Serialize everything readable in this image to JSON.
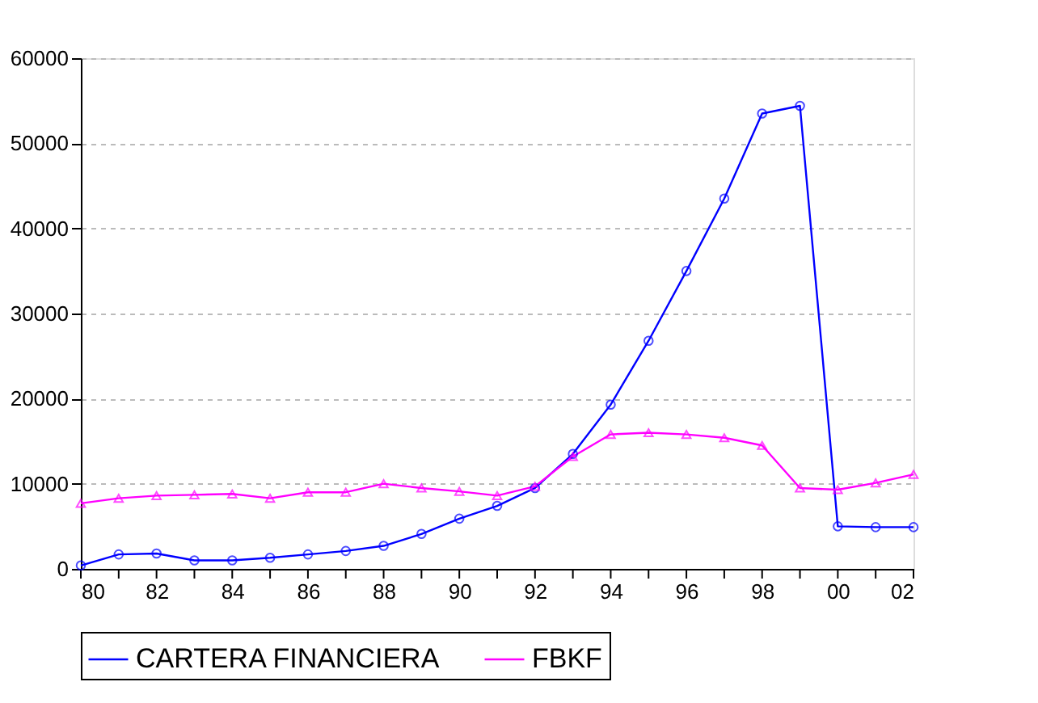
{
  "chart_data": {
    "type": "line",
    "x": [
      1980,
      1981,
      1982,
      1983,
      1984,
      1985,
      1986,
      1987,
      1988,
      1989,
      1990,
      1991,
      1992,
      1993,
      1994,
      1995,
      1996,
      1997,
      1998,
      1999,
      2000,
      2001,
      2002
    ],
    "series": [
      {
        "name": "CARTERA FINANCIERA",
        "color": "#0000ff",
        "marker": "circle",
        "values": [
          400,
          1700,
          1800,
          1000,
          1000,
          1300,
          1700,
          2100,
          2700,
          4100,
          5900,
          7400,
          9500,
          13500,
          19300,
          26800,
          35000,
          43500,
          53500,
          54400,
          5000,
          4900,
          4900
        ]
      },
      {
        "name": "FBKF",
        "color": "#ff00ff",
        "marker": "triangle",
        "values": [
          7700,
          8300,
          8600,
          8700,
          8800,
          8300,
          9000,
          9000,
          10000,
          9500,
          9100,
          8600,
          9700,
          13200,
          15800,
          16000,
          15800,
          15400,
          14500,
          9500,
          9300,
          10100,
          11100
        ]
      }
    ],
    "xlim": [
      1980,
      2002
    ],
    "xticks": [
      {
        "value": 1980,
        "label": "80"
      },
      {
        "value": 1981,
        "label": null
      },
      {
        "value": 1982,
        "label": "82"
      },
      {
        "value": 1983,
        "label": null
      },
      {
        "value": 1984,
        "label": "84"
      },
      {
        "value": 1985,
        "label": null
      },
      {
        "value": 1986,
        "label": "86"
      },
      {
        "value": 1987,
        "label": null
      },
      {
        "value": 1988,
        "label": "88"
      },
      {
        "value": 1989,
        "label": null
      },
      {
        "value": 1990,
        "label": "90"
      },
      {
        "value": 1991,
        "label": null
      },
      {
        "value": 1992,
        "label": "92"
      },
      {
        "value": 1993,
        "label": null
      },
      {
        "value": 1994,
        "label": "94"
      },
      {
        "value": 1995,
        "label": null
      },
      {
        "value": 1996,
        "label": "96"
      },
      {
        "value": 1997,
        "label": null
      },
      {
        "value": 1998,
        "label": "98"
      },
      {
        "value": 1999,
        "label": null
      },
      {
        "value": 2000,
        "label": "00"
      },
      {
        "value": 2001,
        "label": null
      },
      {
        "value": 2002,
        "label": "02"
      }
    ],
    "ylim": [
      0,
      60000
    ],
    "yticks": [
      0,
      10000,
      20000,
      30000,
      40000,
      50000,
      60000
    ],
    "grid": "y",
    "legend": "bottom",
    "line_style": "solid"
  }
}
